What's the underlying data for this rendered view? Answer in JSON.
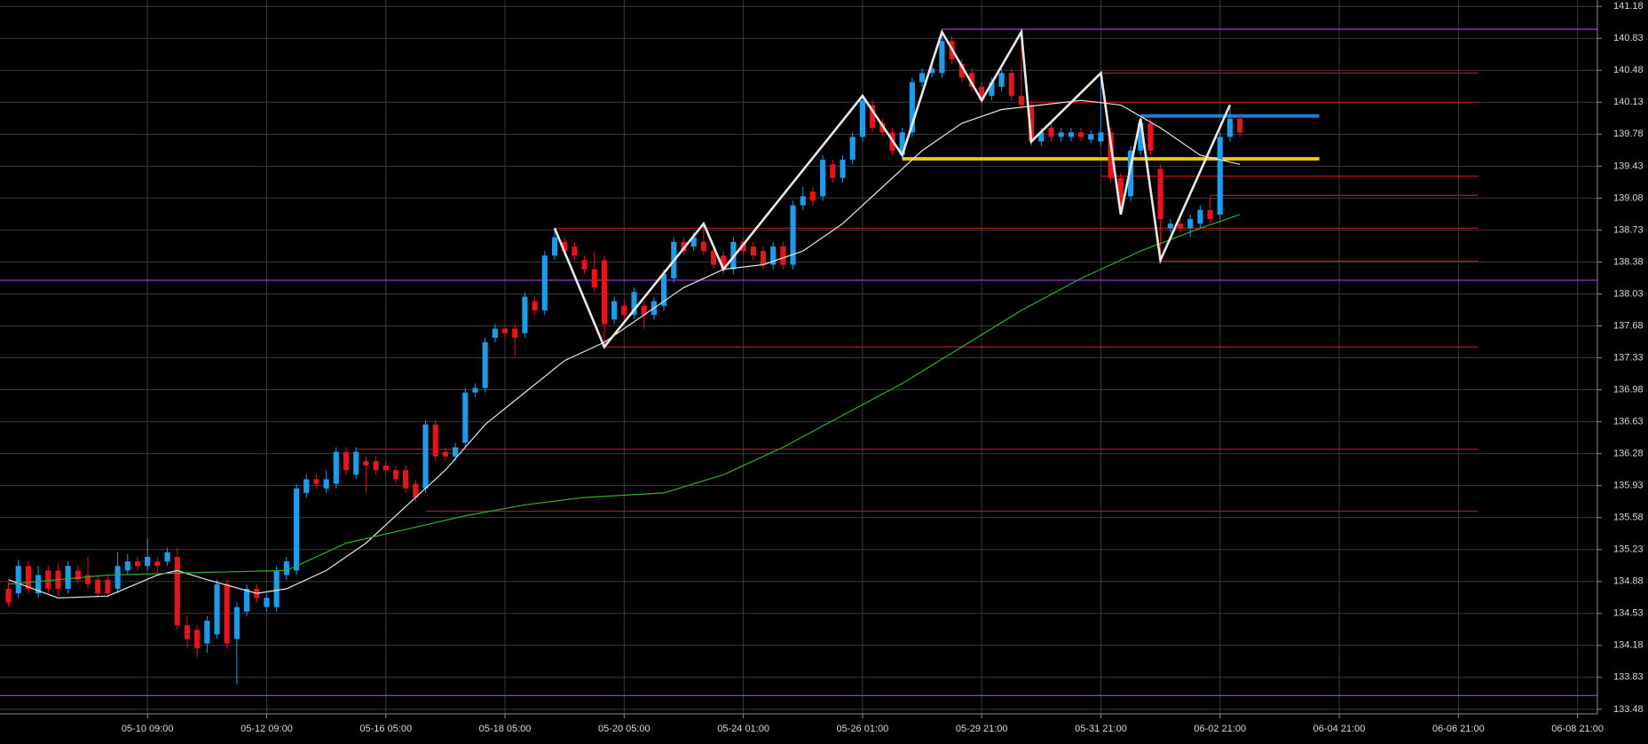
{
  "chart_data": {
    "type": "candlestick",
    "up_color": "#1e9be9",
    "down_color": "#e8141c",
    "grid": true,
    "xlim": [
      -0.85,
      160
    ],
    "ylim": [
      133.43,
      141.25
    ],
    "xticks": [
      {
        "value": 14,
        "label": "05-10 09:00"
      },
      {
        "value": 26,
        "label": "05-12 09:00"
      },
      {
        "value": 38,
        "label": "05-16 05:00"
      },
      {
        "value": 50,
        "label": "05-18 05:00"
      },
      {
        "value": 62,
        "label": "05-20 05:00"
      },
      {
        "value": 74,
        "label": "05-24 01:00"
      },
      {
        "value": 86,
        "label": "05-26 01:00"
      },
      {
        "value": 98,
        "label": "05-29 21:00"
      },
      {
        "value": 110,
        "label": "05-31 21:00"
      },
      {
        "value": 122,
        "label": "06-02 21:00"
      },
      {
        "value": 134,
        "label": "06-04 21:00"
      },
      {
        "value": 146,
        "label": "06-06 21:00"
      },
      {
        "value": 158,
        "label": "06-08 21:00"
      }
    ],
    "yticks": [
      141.18,
      140.83,
      140.48,
      140.13,
      139.78,
      139.43,
      139.08,
      138.73,
      138.38,
      138.03,
      137.68,
      137.33,
      136.98,
      136.63,
      136.28,
      135.93,
      135.58,
      135.23,
      134.88,
      134.53,
      134.18,
      133.83,
      133.48
    ],
    "candles": {
      "x": [
        0,
        1,
        2,
        3,
        4,
        5,
        6,
        7,
        8,
        9,
        10,
        11,
        12,
        13,
        14,
        15,
        16,
        17,
        18,
        19,
        20,
        21,
        22,
        23,
        24,
        25,
        26,
        27,
        28,
        29,
        30,
        31,
        32,
        33,
        34,
        35,
        36,
        37,
        38,
        39,
        40,
        41,
        42,
        43,
        44,
        45,
        46,
        47,
        48,
        49,
        50,
        51,
        52,
        53,
        54,
        55,
        56,
        57,
        58,
        59,
        60,
        61,
        62,
        63,
        64,
        65,
        66,
        67,
        68,
        69,
        70,
        71,
        72,
        73,
        74,
        75,
        76,
        77,
        78,
        79,
        80,
        81,
        82,
        83,
        84,
        85,
        86,
        87,
        88,
        89,
        90,
        91,
        92,
        93,
        94,
        95,
        96,
        97,
        98,
        99,
        100,
        101,
        102,
        103,
        104,
        105,
        106,
        107,
        108,
        109,
        110,
        111,
        112,
        113,
        114,
        115,
        116,
        117,
        118,
        119,
        120,
        121,
        122,
        123,
        124
      ],
      "open": [
        134.8,
        134.75,
        135.05,
        134.75,
        135.0,
        135.0,
        134.8,
        135.0,
        134.95,
        134.9,
        134.9,
        134.8,
        135.0,
        135.1,
        135.05,
        135.1,
        135.1,
        135.15,
        134.4,
        134.35,
        134.2,
        134.3,
        134.85,
        134.25,
        134.55,
        134.8,
        134.6,
        134.6,
        134.95,
        135.0,
        135.85,
        136.0,
        135.9,
        135.95,
        136.3,
        136.05,
        136.2,
        136.2,
        136.15,
        136.1,
        136.1,
        135.95,
        135.9,
        136.6,
        136.3,
        136.25,
        136.4,
        136.95,
        137.0,
        137.55,
        137.65,
        137.65,
        137.6,
        137.95,
        137.85,
        138.45,
        138.6,
        138.55,
        138.4,
        138.3,
        138.4,
        137.75,
        137.9,
        137.8,
        137.9,
        137.8,
        137.9,
        138.2,
        138.6,
        138.55,
        138.6,
        138.5,
        138.45,
        138.3,
        138.6,
        138.55,
        138.5,
        138.35,
        138.55,
        138.35,
        139.0,
        139.15,
        139.1,
        139.45,
        139.3,
        139.5,
        139.75,
        140.1,
        139.9,
        139.8,
        139.55,
        139.8,
        140.35,
        140.45,
        140.45,
        140.8,
        140.55,
        140.45,
        140.3,
        140.2,
        140.3,
        140.45,
        140.2,
        140.1,
        139.7,
        139.85,
        139.75,
        139.75,
        139.8,
        139.72,
        139.7,
        139.8,
        139.3,
        139.1,
        139.6,
        139.9,
        139.4,
        138.75,
        138.8,
        138.75,
        138.8,
        138.95,
        138.9,
        139.75,
        139.95
      ],
      "high": [
        134.88,
        135.12,
        135.1,
        135.05,
        135.05,
        135.08,
        135.1,
        135.05,
        135.15,
        134.95,
        134.95,
        135.2,
        135.18,
        135.15,
        135.35,
        135.15,
        135.25,
        135.25,
        134.5,
        134.4,
        134.5,
        134.9,
        134.9,
        134.65,
        134.85,
        134.85,
        134.75,
        135.05,
        135.15,
        135.95,
        136.05,
        136.05,
        136.1,
        136.35,
        136.35,
        136.35,
        136.25,
        136.25,
        136.2,
        136.15,
        136.15,
        136.0,
        136.65,
        136.65,
        136.35,
        136.4,
        137.0,
        137.05,
        137.55,
        137.7,
        137.68,
        137.7,
        138.05,
        138.0,
        138.5,
        138.75,
        138.65,
        138.6,
        138.45,
        138.5,
        138.45,
        138.0,
        137.95,
        138.1,
        137.95,
        138.0,
        138.3,
        138.65,
        138.65,
        138.7,
        138.8,
        138.55,
        138.5,
        138.65,
        138.65,
        138.6,
        138.55,
        138.6,
        138.6,
        139.05,
        139.2,
        139.2,
        139.55,
        139.5,
        139.55,
        139.8,
        140.2,
        140.15,
        139.95,
        139.85,
        139.85,
        140.4,
        140.5,
        140.55,
        140.9,
        140.85,
        140.6,
        140.5,
        140.35,
        140.4,
        140.5,
        140.5,
        140.9,
        140.15,
        139.85,
        139.9,
        139.85,
        139.85,
        139.85,
        139.82,
        140.45,
        139.85,
        139.35,
        139.65,
        139.95,
        139.95,
        139.45,
        138.85,
        138.85,
        138.9,
        139.0,
        139.1,
        139.8,
        140.1,
        140.0
      ],
      "low": [
        134.6,
        134.7,
        134.75,
        134.7,
        134.75,
        134.72,
        134.75,
        134.85,
        134.8,
        134.7,
        134.7,
        134.75,
        134.95,
        135.0,
        135.0,
        134.98,
        135.05,
        134.35,
        134.15,
        134.05,
        134.1,
        134.25,
        134.15,
        133.75,
        134.5,
        134.65,
        134.55,
        134.55,
        134.9,
        134.95,
        135.8,
        135.9,
        135.85,
        135.9,
        136.05,
        136.0,
        135.85,
        136.05,
        136.05,
        135.95,
        135.85,
        135.75,
        135.85,
        136.2,
        136.2,
        136.2,
        136.35,
        136.9,
        136.95,
        137.5,
        137.55,
        137.35,
        137.55,
        137.8,
        137.8,
        138.4,
        138.45,
        138.4,
        138.25,
        138.05,
        137.45,
        137.7,
        137.75,
        137.75,
        137.65,
        137.75,
        137.85,
        138.15,
        138.45,
        138.5,
        138.45,
        138.3,
        138.25,
        138.25,
        138.45,
        138.4,
        138.3,
        138.3,
        138.3,
        138.3,
        138.95,
        139.0,
        139.05,
        139.25,
        139.25,
        139.45,
        139.7,
        139.8,
        139.75,
        139.55,
        139.5,
        139.75,
        140.3,
        140.4,
        140.4,
        140.55,
        140.35,
        140.25,
        140.1,
        140.15,
        140.25,
        140.15,
        140.05,
        139.65,
        139.65,
        139.7,
        139.7,
        139.7,
        139.7,
        139.68,
        139.65,
        139.25,
        138.9,
        139.05,
        139.55,
        139.55,
        138.4,
        138.7,
        138.7,
        138.65,
        138.75,
        138.8,
        138.85,
        139.7,
        139.75
      ],
      "close": [
        134.65,
        135.05,
        134.8,
        134.95,
        134.8,
        134.8,
        135.05,
        134.9,
        134.85,
        134.75,
        134.75,
        135.05,
        135.1,
        135.05,
        135.15,
        135.05,
        135.2,
        134.4,
        134.25,
        134.15,
        134.45,
        134.85,
        134.2,
        134.6,
        134.8,
        134.7,
        134.7,
        135.0,
        135.1,
        135.9,
        136.0,
        135.95,
        136.0,
        136.3,
        136.1,
        136.3,
        136.15,
        136.1,
        136.1,
        136.0,
        135.9,
        135.8,
        136.6,
        136.25,
        136.25,
        136.35,
        136.95,
        137.0,
        137.5,
        137.65,
        137.6,
        137.55,
        138.0,
        137.85,
        138.45,
        138.65,
        138.5,
        138.45,
        138.3,
        138.1,
        137.7,
        137.95,
        137.8,
        138.05,
        137.8,
        137.95,
        138.25,
        138.6,
        138.5,
        138.65,
        138.5,
        138.35,
        138.3,
        138.6,
        138.5,
        138.45,
        138.35,
        138.55,
        138.35,
        139.0,
        139.1,
        139.05,
        139.5,
        139.3,
        139.5,
        139.75,
        140.15,
        139.85,
        139.8,
        139.6,
        139.8,
        140.35,
        140.45,
        140.5,
        140.8,
        140.6,
        140.4,
        140.3,
        140.15,
        140.35,
        140.45,
        140.2,
        140.1,
        139.7,
        139.8,
        139.75,
        139.8,
        139.8,
        139.75,
        139.78,
        139.8,
        139.3,
        139.0,
        139.6,
        139.9,
        139.6,
        138.85,
        138.8,
        138.75,
        138.85,
        138.95,
        138.85,
        139.75,
        139.95,
        139.8
      ]
    },
    "levels": [
      {
        "value": 140.93,
        "color": "#9b30d9",
        "x": [
          94,
          160
        ]
      },
      {
        "value": 138.18,
        "color": "#9b30d9"
      },
      {
        "value": 133.63,
        "color": "#9b30d9"
      },
      {
        "value": 140.45,
        "color": "#a8141a",
        "x": [
          110,
          148
        ]
      },
      {
        "value": 140.13,
        "color": "#a8141a",
        "x": [
          103,
          148
        ]
      },
      {
        "value": 139.32,
        "color": "#a8141a",
        "x": [
          110,
          148
        ]
      },
      {
        "value": 139.11,
        "color": "#a8141a",
        "x": [
          121,
          148
        ]
      },
      {
        "value": 138.75,
        "color": "#a8141a",
        "x": [
          55,
          148
        ]
      },
      {
        "value": 138.39,
        "color": "#a8141a",
        "x": [
          116,
          148
        ]
      },
      {
        "value": 137.45,
        "color": "#a8141a",
        "x": [
          60,
          148
        ]
      },
      {
        "value": 136.33,
        "color": "#a8141a",
        "x": [
          35,
          148
        ]
      },
      {
        "value": 135.65,
        "color": "#a8141a",
        "x": [
          42,
          148
        ]
      },
      {
        "value": 139.51,
        "color": "#f2c500",
        "x": [
          90,
          132
        ],
        "style": "thick"
      },
      {
        "value": 139.98,
        "color": "#1a7fd4",
        "x": [
          114,
          132
        ],
        "style": "thick"
      }
    ],
    "lines": [
      {
        "color": "#e6e6e6",
        "x": [
          0,
          5,
          10,
          15,
          17,
          20,
          25,
          28,
          32,
          36,
          40,
          44,
          48,
          52,
          56,
          60,
          64,
          68,
          72,
          76,
          80,
          84,
          88,
          92,
          96,
          100,
          104,
          108,
          112,
          116,
          120,
          124
        ],
        "values": [
          134.9,
          134.7,
          134.72,
          134.95,
          135.0,
          134.9,
          134.75,
          134.8,
          135.0,
          135.3,
          135.7,
          136.1,
          136.6,
          136.95,
          137.3,
          137.5,
          137.8,
          138.1,
          138.3,
          138.35,
          138.5,
          138.8,
          139.2,
          139.6,
          139.9,
          140.05,
          140.1,
          140.15,
          140.1,
          139.85,
          139.55,
          139.45
        ]
      },
      {
        "color": "#2fae2f",
        "x": [
          0,
          10,
          20,
          28,
          34,
          40,
          46,
          52,
          58,
          66,
          72,
          78,
          84,
          90,
          96,
          102,
          108,
          114,
          120,
          124
        ],
        "values": [
          134.85,
          134.95,
          134.98,
          135.0,
          135.3,
          135.45,
          135.6,
          135.72,
          135.8,
          135.85,
          136.05,
          136.35,
          136.7,
          137.05,
          137.45,
          137.85,
          138.2,
          138.5,
          138.75,
          138.9
        ]
      },
      {
        "color": "#e8e8e8",
        "style": "thick",
        "x": [
          55,
          60,
          70,
          72,
          86,
          90,
          94,
          98,
          102,
          103,
          110,
          112,
          114,
          116,
          123
        ],
        "values": [
          138.75,
          137.45,
          138.8,
          138.3,
          140.2,
          139.55,
          140.9,
          140.15,
          140.9,
          139.7,
          140.45,
          138.9,
          139.95,
          138.4,
          140.1
        ]
      }
    ]
  }
}
